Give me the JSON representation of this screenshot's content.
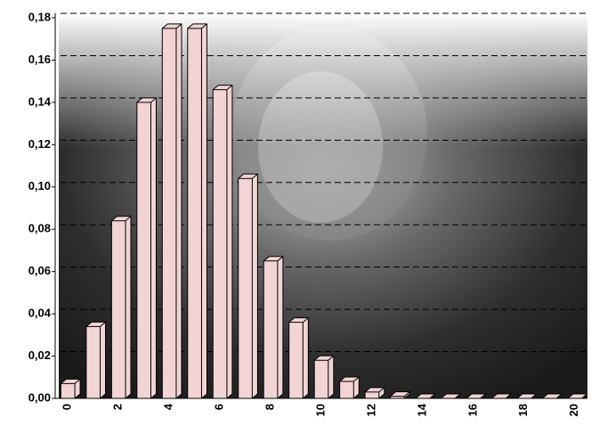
{
  "chart_data": {
    "type": "bar3d",
    "categories": [
      "0",
      null,
      "2",
      null,
      "4",
      null,
      "6",
      null,
      "8",
      null,
      "10",
      null,
      "12",
      null,
      "14",
      null,
      "16",
      null,
      "18",
      null,
      "20"
    ],
    "values": [
      0.007,
      0.034,
      0.084,
      0.14,
      0.175,
      0.175,
      0.146,
      0.104,
      0.065,
      0.036,
      0.018,
      0.008,
      0.003,
      0.001,
      0,
      0,
      0,
      0,
      0,
      0,
      0
    ],
    "color": "#f2d4d4",
    "ylim": [
      0,
      0.18
    ],
    "yticks": [
      {
        "value": 0,
        "label": "0,00"
      },
      {
        "value": 0.02,
        "label": "0,02"
      },
      {
        "value": 0.04,
        "label": "0,04"
      },
      {
        "value": 0.06,
        "label": "0,06"
      },
      {
        "value": 0.08,
        "label": "0,08"
      },
      {
        "value": 0.1,
        "label": "0,10"
      },
      {
        "value": 0.12,
        "label": "0,12"
      },
      {
        "value": 0.14,
        "label": "0,14"
      },
      {
        "value": 0.16,
        "label": "0,16"
      },
      {
        "value": 0.18,
        "label": "0,18"
      }
    ],
    "grid": true
  }
}
